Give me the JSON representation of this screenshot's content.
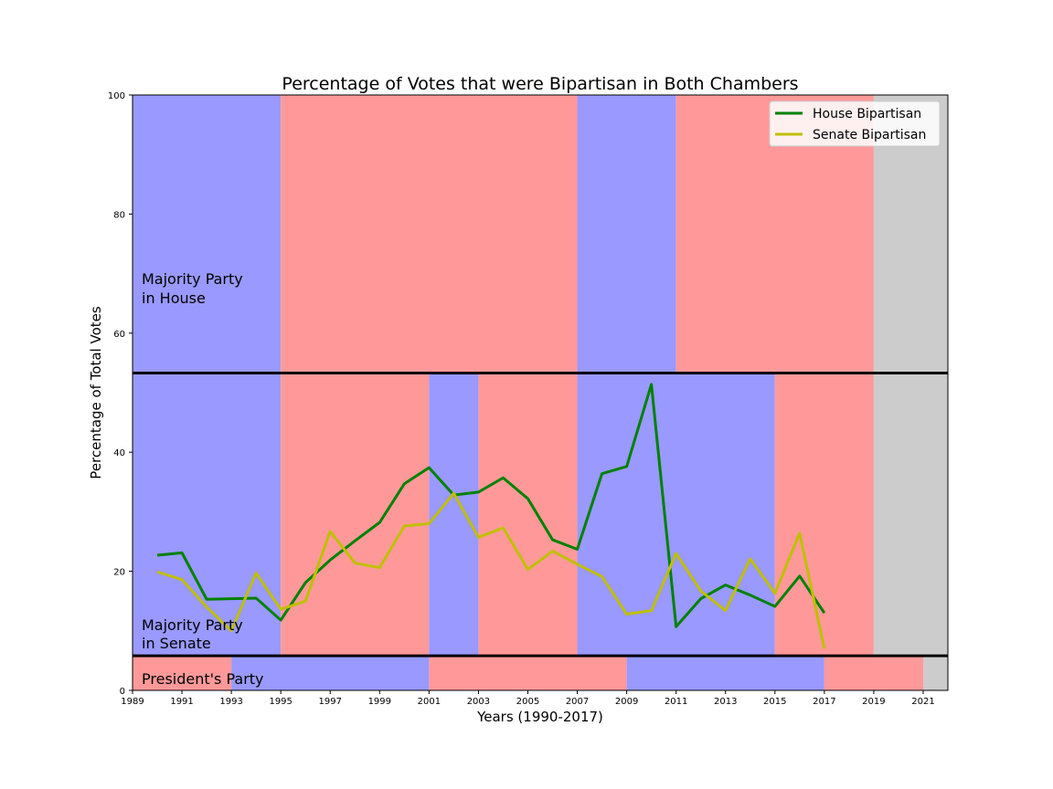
{
  "chart_data": {
    "type": "line",
    "title": "Percentage of Votes that were Bipartisan in Both Chambers",
    "xlabel": "Years (1990-2017)",
    "ylabel": "Percentage of Total Votes",
    "xlim": [
      1989,
      2022
    ],
    "ylim": [
      0,
      100
    ],
    "x_ticks": [
      1989,
      1991,
      1993,
      1995,
      1997,
      1999,
      2001,
      2003,
      2005,
      2007,
      2009,
      2011,
      2013,
      2015,
      2017,
      2019,
      2021
    ],
    "y_ticks": [
      0,
      20,
      40,
      60,
      80,
      100
    ],
    "legend_position": "top-right",
    "grid": false,
    "colors": {
      "democrat": "#9999ff",
      "republican": "#ff9999",
      "unknown": "#cccccc",
      "house_line": "#008000",
      "senate_line": "#bfbf00"
    },
    "x": [
      1990,
      1991,
      1992,
      1993,
      1994,
      1995,
      1996,
      1997,
      1998,
      1999,
      2000,
      2001,
      2002,
      2003,
      2004,
      2005,
      2006,
      2007,
      2008,
      2009,
      2010,
      2011,
      2012,
      2013,
      2014,
      2015,
      2016,
      2017
    ],
    "series": [
      {
        "name": "House Bipartisan",
        "color": "#008000",
        "values": [
          22.7,
          23.1,
          15.3,
          15.4,
          15.5,
          11.8,
          18.1,
          21.9,
          25.1,
          28.2,
          34.7,
          37.4,
          32.8,
          33.3,
          35.7,
          32.2,
          25.3,
          23.7,
          36.4,
          37.6,
          51.4,
          10.7,
          15.4,
          17.7,
          16.0,
          14.1,
          19.2,
          13.0
        ]
      },
      {
        "name": "Senate Bipartisan",
        "color": "#bfbf00",
        "values": [
          19.9,
          18.6,
          14.0,
          10.0,
          19.7,
          13.6,
          15.0,
          26.7,
          21.4,
          20.6,
          27.6,
          28.0,
          33.1,
          25.7,
          27.3,
          20.3,
          23.4,
          21.2,
          19.1,
          12.8,
          13.4,
          23.0,
          16.7,
          13.4,
          22.1,
          16.3,
          26.4,
          7.0
        ]
      }
    ],
    "bands": {
      "house": {
        "label_line1": "Majority Party",
        "label_line2": "in House",
        "y_range": [
          53.3,
          100
        ],
        "segments": [
          {
            "from": 1989,
            "to": 1995,
            "party": "democrat"
          },
          {
            "from": 1995,
            "to": 2007,
            "party": "republican"
          },
          {
            "from": 2007,
            "to": 2011,
            "party": "democrat"
          },
          {
            "from": 2011,
            "to": 2019,
            "party": "republican"
          },
          {
            "from": 2019,
            "to": 2022,
            "party": "unknown"
          }
        ]
      },
      "senate": {
        "label_line1": "Majority Party",
        "label_line2": "in Senate",
        "y_range": [
          5.8,
          53.3
        ],
        "segments": [
          {
            "from": 1989,
            "to": 1995,
            "party": "democrat"
          },
          {
            "from": 1995,
            "to": 2001,
            "party": "republican"
          },
          {
            "from": 2001,
            "to": 2003,
            "party": "democrat"
          },
          {
            "from": 2003,
            "to": 2007,
            "party": "republican"
          },
          {
            "from": 2007,
            "to": 2015,
            "party": "democrat"
          },
          {
            "from": 2015,
            "to": 2019,
            "party": "republican"
          },
          {
            "from": 2019,
            "to": 2022,
            "party": "unknown"
          }
        ]
      },
      "president": {
        "label_line1": "President's Party",
        "y_range": [
          0,
          5.8
        ],
        "segments": [
          {
            "from": 1989,
            "to": 1993,
            "party": "republican"
          },
          {
            "from": 1993,
            "to": 2001,
            "party": "democrat"
          },
          {
            "from": 2001,
            "to": 2009,
            "party": "republican"
          },
          {
            "from": 2009,
            "to": 2017,
            "party": "democrat"
          },
          {
            "from": 2017,
            "to": 2021,
            "party": "republican"
          },
          {
            "from": 2021,
            "to": 2022,
            "party": "unknown"
          }
        ]
      },
      "dividers": [
        53.3,
        5.8
      ]
    }
  }
}
